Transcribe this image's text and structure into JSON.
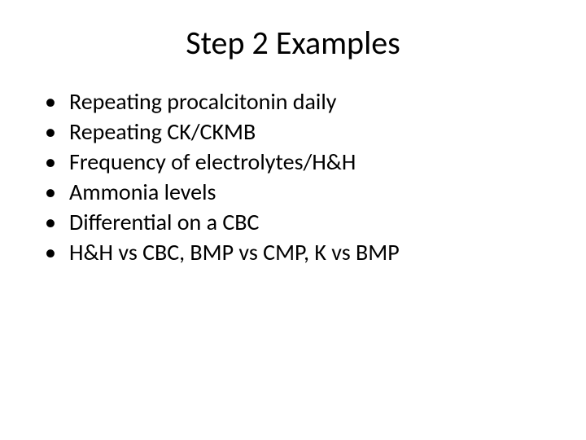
{
  "slide": {
    "title": "Step 2 Examples",
    "title_fontsize": 40,
    "title_color": "#000000",
    "background_color": "#ffffff",
    "bullets": [
      "Repeating procalcitonin daily",
      "Repeating CK/CKMB",
      "Frequency of electrolytes/H&H",
      "Ammonia levels",
      "Differential on a CBC",
      "H&H vs CBC, BMP vs CMP, K vs BMP"
    ],
    "bullet_fontsize": 28,
    "bullet_color": "#000000",
    "font_family": "Calibri"
  }
}
